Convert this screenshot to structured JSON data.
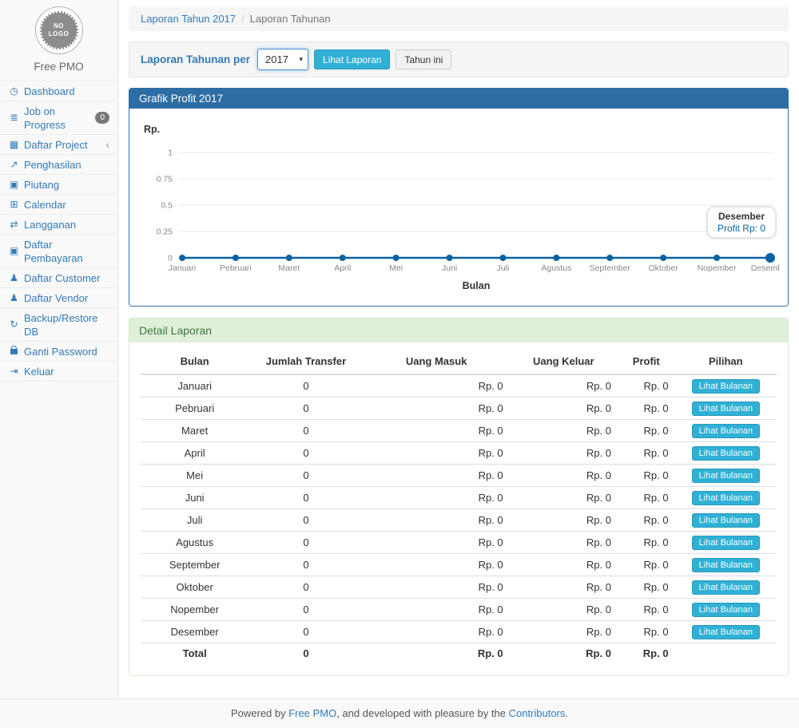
{
  "sidebar": {
    "logo_line1": "NO",
    "logo_line2": "LOGO",
    "app_name": "Free PMO",
    "items": [
      {
        "key": "dashboard",
        "icon": "dashboard-icon",
        "glyph": "◷",
        "label": "Dashboard"
      },
      {
        "key": "job-on-progress",
        "icon": "tasks-icon",
        "glyph": "≣",
        "label": "Job on Progress",
        "badge": "0"
      },
      {
        "key": "daftar-project",
        "icon": "table-icon",
        "glyph": "▦",
        "label": "Daftar Project",
        "chevron": "‹"
      },
      {
        "key": "penghasilan",
        "icon": "line-chart-icon",
        "glyph": "↗",
        "label": "Penghasilan"
      },
      {
        "key": "piutang",
        "icon": "money-icon",
        "glyph": "▣",
        "label": "Piutang"
      },
      {
        "key": "calendar",
        "icon": "calendar-icon",
        "glyph": "⊞",
        "label": "Calendar"
      },
      {
        "key": "langganan",
        "icon": "repeat-icon",
        "glyph": "⇄",
        "label": "Langganan"
      },
      {
        "key": "daftar-pembayaran",
        "icon": "money-icon",
        "glyph": "▣",
        "label": "Daftar Pembayaran"
      },
      {
        "key": "daftar-customer",
        "icon": "users-icon",
        "glyph": "♟",
        "label": "Daftar Customer"
      },
      {
        "key": "daftar-vendor",
        "icon": "users-icon",
        "glyph": "♟",
        "label": "Daftar Vendor"
      },
      {
        "key": "backup-restore-db",
        "icon": "refresh-icon",
        "glyph": "↻",
        "label": "Backup/Restore DB"
      },
      {
        "key": "ganti-password",
        "icon": "lock-icon",
        "glyph": "",
        "label": "Ganti Password"
      },
      {
        "key": "keluar",
        "icon": "sign-out-icon",
        "glyph": "⇥",
        "label": "Keluar"
      }
    ]
  },
  "breadcrumb": {
    "link": "Laporan Tahun 2017",
    "separator": "/",
    "current": "Laporan Tahunan"
  },
  "filter": {
    "label": "Laporan Tahunan per",
    "year": "2017",
    "caret": "▾",
    "submit_label": "Lihat Laporan",
    "this_year_label": "Tahun ini"
  },
  "chart_panel": {
    "title": "Grafik Profit 2017"
  },
  "chart_data": {
    "type": "line",
    "title": "Grafik Profit 2017",
    "categories": [
      "Januari",
      "Pebruari",
      "Maret",
      "April",
      "Mei",
      "Juni",
      "Juli",
      "Agustus",
      "September",
      "Oktober",
      "Nopember",
      "Desember"
    ],
    "series": [
      {
        "name": "Profit",
        "values": [
          0,
          0,
          0,
          0,
          0,
          0,
          0,
          0,
          0,
          0,
          0,
          0
        ]
      }
    ],
    "xlabel": "Bulan",
    "ylabel": "Rp.",
    "yticks": [
      0,
      0.25,
      0.5,
      0.75,
      1
    ],
    "ylim": [
      0,
      1
    ],
    "grid": true,
    "line_color": "#0b62a4",
    "hovered_point": "Desember",
    "tooltip": {
      "title": "Desember",
      "text": "Profit Rp: 0"
    }
  },
  "detail": {
    "title": "Detail Laporan",
    "columns": [
      "Bulan",
      "Jumlah Transfer",
      "Uang Masuk",
      "Uang Keluar",
      "Profit",
      "Pilihan"
    ],
    "action_label": "Lihat Bulanan",
    "rows": [
      {
        "bulan": "Januari",
        "jumlah_transfer": "0",
        "uang_masuk": "Rp. 0",
        "uang_keluar": "Rp. 0",
        "profit": "Rp. 0"
      },
      {
        "bulan": "Pebruari",
        "jumlah_transfer": "0",
        "uang_masuk": "Rp. 0",
        "uang_keluar": "Rp. 0",
        "profit": "Rp. 0"
      },
      {
        "bulan": "Maret",
        "jumlah_transfer": "0",
        "uang_masuk": "Rp. 0",
        "uang_keluar": "Rp. 0",
        "profit": "Rp. 0"
      },
      {
        "bulan": "April",
        "jumlah_transfer": "0",
        "uang_masuk": "Rp. 0",
        "uang_keluar": "Rp. 0",
        "profit": "Rp. 0"
      },
      {
        "bulan": "Mei",
        "jumlah_transfer": "0",
        "uang_masuk": "Rp. 0",
        "uang_keluar": "Rp. 0",
        "profit": "Rp. 0"
      },
      {
        "bulan": "Juni",
        "jumlah_transfer": "0",
        "uang_masuk": "Rp. 0",
        "uang_keluar": "Rp. 0",
        "profit": "Rp. 0"
      },
      {
        "bulan": "Juli",
        "jumlah_transfer": "0",
        "uang_masuk": "Rp. 0",
        "uang_keluar": "Rp. 0",
        "profit": "Rp. 0"
      },
      {
        "bulan": "Agustus",
        "jumlah_transfer": "0",
        "uang_masuk": "Rp. 0",
        "uang_keluar": "Rp. 0",
        "profit": "Rp. 0"
      },
      {
        "bulan": "September",
        "jumlah_transfer": "0",
        "uang_masuk": "Rp. 0",
        "uang_keluar": "Rp. 0",
        "profit": "Rp. 0"
      },
      {
        "bulan": "Oktober",
        "jumlah_transfer": "0",
        "uang_masuk": "Rp. 0",
        "uang_keluar": "Rp. 0",
        "profit": "Rp. 0"
      },
      {
        "bulan": "Nopember",
        "jumlah_transfer": "0",
        "uang_masuk": "Rp. 0",
        "uang_keluar": "Rp. 0",
        "profit": "Rp. 0"
      },
      {
        "bulan": "Desember",
        "jumlah_transfer": "0",
        "uang_masuk": "Rp. 0",
        "uang_keluar": "Rp. 0",
        "profit": "Rp. 0"
      }
    ],
    "total": {
      "bulan": "Total",
      "jumlah_transfer": "0",
      "uang_masuk": "Rp. 0",
      "uang_keluar": "Rp. 0",
      "profit": "Rp. 0"
    }
  },
  "footer": {
    "prefix": "Powered by ",
    "link1": "Free PMO",
    "middle": ", and developed with pleasure by the ",
    "link2": "Contributors",
    "suffix": "."
  },
  "colors": {
    "accent_link": "#337ab7",
    "panel_primary": "#2e6da4",
    "panel_success_bg": "#dff0d8",
    "panel_success_text": "#3c763d",
    "button_info": "#31b0d5",
    "chart_line": "#0b62a4"
  }
}
